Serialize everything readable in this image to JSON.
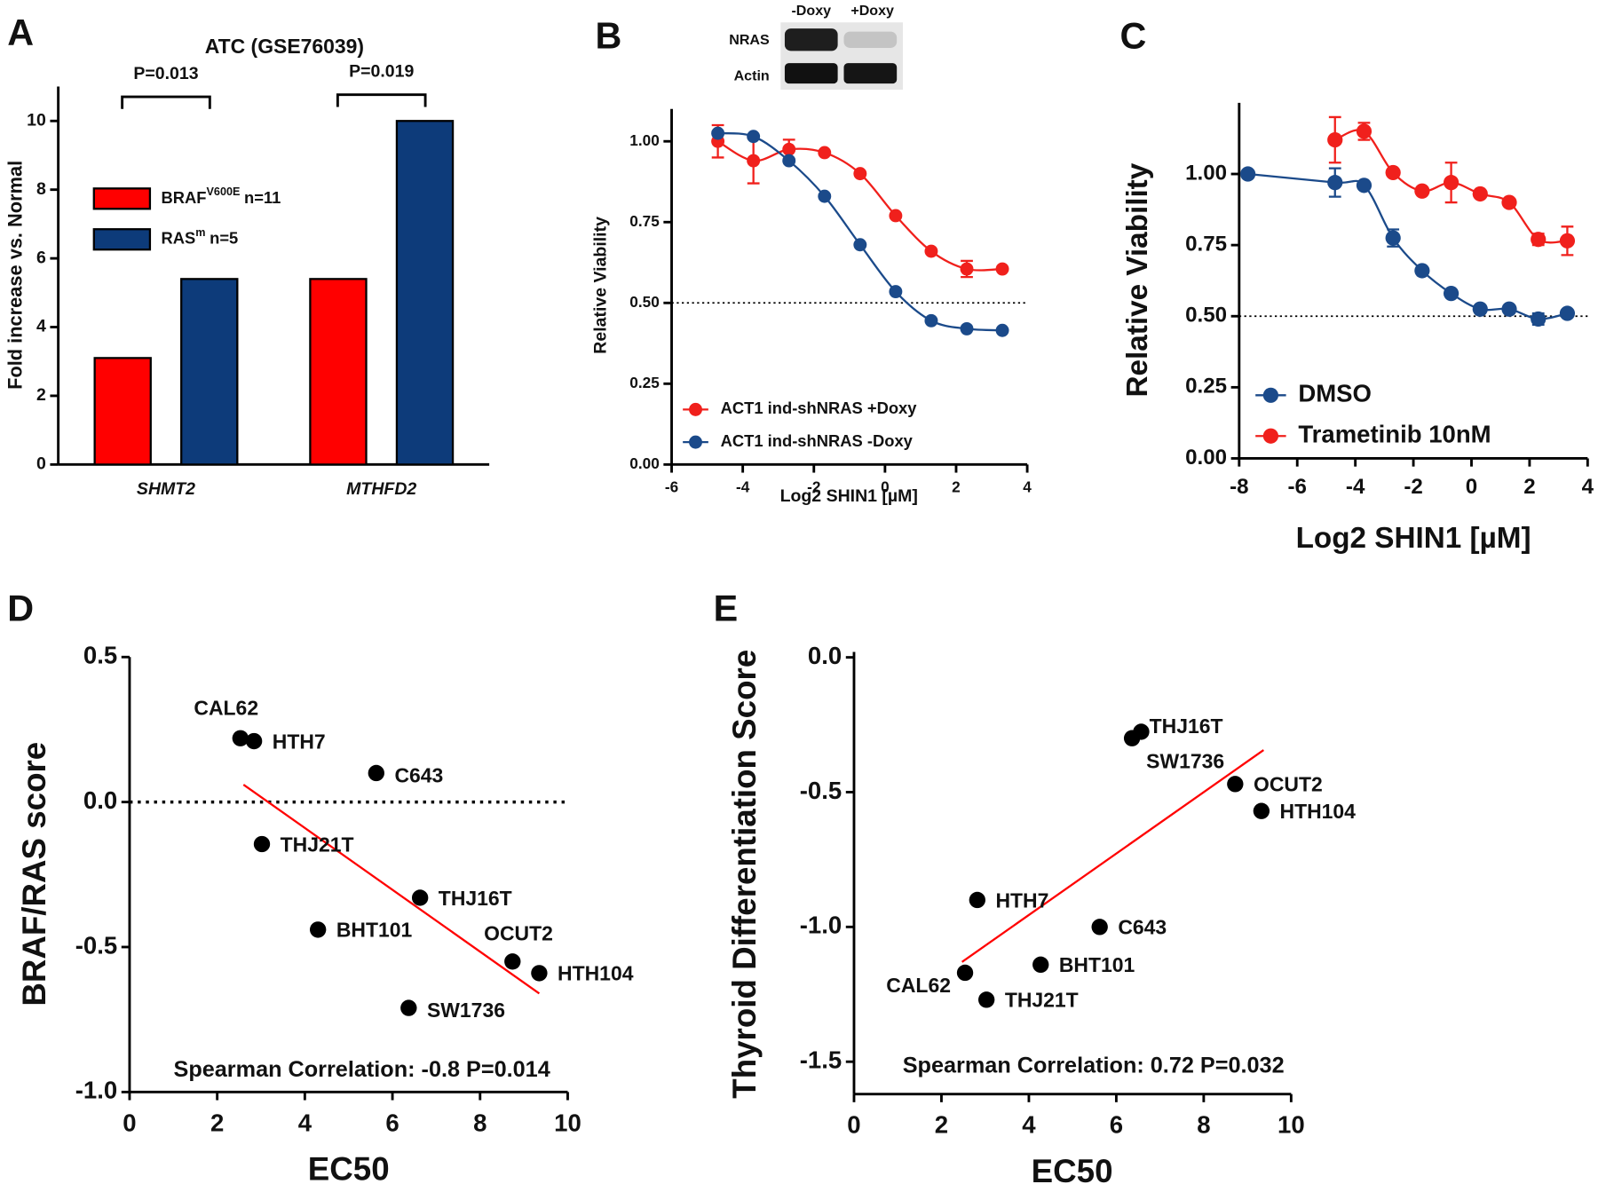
{
  "chart_data": [
    {
      "type": "bar",
      "panel": "A",
      "title": "ATC (GSE76039)",
      "y_label": "Fold increase vs. Normal",
      "categories": [
        "SHMT2",
        "MTHFD2"
      ],
      "series": [
        {
          "name": "BRAF",
          "superscript": "V600E",
          "n": "n=11",
          "color": "#ff0000",
          "values": [
            3.1,
            5.4
          ]
        },
        {
          "name": "RAS",
          "superscript": "m",
          "n": "n=5",
          "color": "#0d3b7a",
          "values": [
            5.4,
            10.0
          ]
        }
      ],
      "ylim": [
        0,
        11
      ],
      "yticks": [
        0,
        2,
        4,
        6,
        8,
        10
      ],
      "annotations": [
        "P=0.013",
        "P=0.019"
      ],
      "legend": "upper left"
    },
    {
      "type": "line",
      "panel": "B",
      "y_label": "Relative Viability",
      "x_label": "Log2 SHIN1 [µM]",
      "blot": {
        "conditions": [
          "-Doxy",
          "+Doxy"
        ],
        "proteins": [
          "NRAS",
          "Actin"
        ]
      },
      "x": [
        -4.7,
        -3.7,
        -2.7,
        -1.7,
        -0.7,
        0.3,
        1.3,
        2.3,
        3.3
      ],
      "series": [
        {
          "name": "ACT1 ind-shNRAS +Doxy",
          "color": "#f0201c",
          "values": [
            1.0,
            0.94,
            0.975,
            0.965,
            0.9,
            0.77,
            0.66,
            0.605,
            0.605
          ],
          "errors": [
            0.05,
            0.07,
            0.03,
            null,
            null,
            null,
            null,
            0.025,
            null
          ]
        },
        {
          "name": "ACT1 ind-shNRAS -Doxy",
          "color": "#1b4a8a",
          "values": [
            1.025,
            1.015,
            0.94,
            0.83,
            0.68,
            0.535,
            0.445,
            0.42,
            0.415
          ]
        }
      ],
      "xlim": [
        -6,
        4
      ],
      "xticks": [
        -6,
        -4,
        -2,
        0,
        2,
        4
      ],
      "ylim": [
        0,
        1.1
      ],
      "yticks": [
        {
          "value": 0,
          "label": "0.00"
        },
        {
          "value": 0.25,
          "label": "0.25"
        },
        {
          "value": 0.5,
          "label": "0.50"
        },
        {
          "value": 0.75,
          "label": "0.75"
        },
        {
          "value": 1,
          "label": "1.00"
        }
      ],
      "reference_line": 0.5,
      "legend": "lower left"
    },
    {
      "type": "line",
      "panel": "C",
      "y_label": "Relative Viability",
      "x_label": "Log2 SHIN1 [µM]",
      "x": [
        -7.7,
        -4.7,
        -3.7,
        -2.7,
        -1.7,
        -0.7,
        0.3,
        1.3,
        2.3,
        3.3
      ],
      "series": [
        {
          "name": "DMSO",
          "color": "#1b4a8a",
          "values": [
            1.0,
            0.97,
            0.96,
            0.775,
            0.66,
            0.58,
            0.525,
            0.525,
            0.49,
            0.51
          ],
          "errors": [
            null,
            0.05,
            null,
            0.03,
            null,
            null,
            null,
            null,
            0.02,
            null
          ]
        },
        {
          "name": "Trametinib 10nM",
          "color": "#f0201c",
          "values": [
            null,
            1.12,
            1.15,
            1.005,
            0.94,
            0.97,
            0.93,
            0.9,
            0.77,
            0.765
          ],
          "errors": [
            null,
            0.08,
            0.03,
            null,
            null,
            0.07,
            null,
            null,
            0.02,
            0.05
          ]
        }
      ],
      "xlim": [
        -8,
        4
      ],
      "xticks": [
        -8,
        -6,
        -4,
        -2,
        0,
        2,
        4
      ],
      "ylim": [
        0,
        1.25
      ],
      "yticks": [
        {
          "value": 0,
          "label": "0.00"
        },
        {
          "value": 0.25,
          "label": "0.25"
        },
        {
          "value": 0.5,
          "label": "0.50"
        },
        {
          "value": 0.75,
          "label": "0.75"
        },
        {
          "value": 1,
          "label": "1.00"
        }
      ],
      "reference_line": 0.5,
      "legend": "lower left"
    },
    {
      "type": "scatter",
      "panel": "D",
      "y_label": "BRAF/RAS score",
      "x_label": "EC50",
      "labels": [
        "CAL62",
        "HTH7",
        "C643",
        "THJ21T",
        "THJ16T",
        "BHT101",
        "OCUT2",
        "HTH104",
        "SW1736"
      ],
      "x": [
        2.53,
        2.84,
        5.63,
        3.02,
        6.63,
        4.3,
        8.74,
        9.35,
        6.37
      ],
      "values": [
        0.22,
        0.21,
        0.1,
        -0.145,
        -0.33,
        -0.44,
        -0.55,
        -0.59,
        -0.71
      ],
      "fit_line": {
        "x": [
          2.6,
          9.35
        ],
        "y": [
          0.06,
          -0.66
        ]
      },
      "color": "#000000",
      "fit_color": "#ff0000",
      "annotation": "Spearman Correlation: -0.8 P=0.014",
      "reference_line": 0,
      "xlim": [
        0,
        10
      ],
      "xticks": [
        0,
        2,
        4,
        6,
        8,
        10
      ],
      "ylim": [
        -1,
        0.5
      ],
      "yticks": [
        {
          "value": -1,
          "label": "-1.0"
        },
        {
          "value": -0.5,
          "label": "-0.5"
        },
        {
          "value": 0,
          "label": "0.0"
        },
        {
          "value": 0.5,
          "label": "0.5"
        }
      ]
    },
    {
      "type": "scatter",
      "panel": "E",
      "y_label": "Thyroid Differentiation Score",
      "x_label": "EC50",
      "labels": [
        "THJ16T",
        "SW1736",
        "OCUT2",
        "HTH104",
        "HTH7",
        "C643",
        "BHT101",
        "CAL62",
        "THJ21T"
      ],
      "x": [
        6.57,
        6.36,
        8.72,
        9.32,
        2.82,
        5.62,
        4.27,
        2.54,
        3.03
      ],
      "values": [
        -0.276,
        -0.3,
        -0.47,
        -0.57,
        -0.9,
        -1.0,
        -1.14,
        -1.17,
        -1.27
      ],
      "fit_line": {
        "x": [
          2.47,
          9.37
        ],
        "y": [
          -1.13,
          -0.344
        ]
      },
      "color": "#000000",
      "fit_color": "#ff0000",
      "annotation": "Spearman Correlation: 0.72 P=0.032",
      "xlim": [
        0,
        10
      ],
      "xticks": [
        0,
        2,
        4,
        6,
        8,
        10
      ],
      "ylim": [
        -1.62,
        0.02
      ],
      "yticks": [
        {
          "value": -1.5,
          "label": "-1.5"
        },
        {
          "value": -1,
          "label": "-1.0"
        },
        {
          "value": -0.5,
          "label": "-0.5"
        },
        {
          "value": 0,
          "label": "0.0"
        }
      ]
    }
  ]
}
